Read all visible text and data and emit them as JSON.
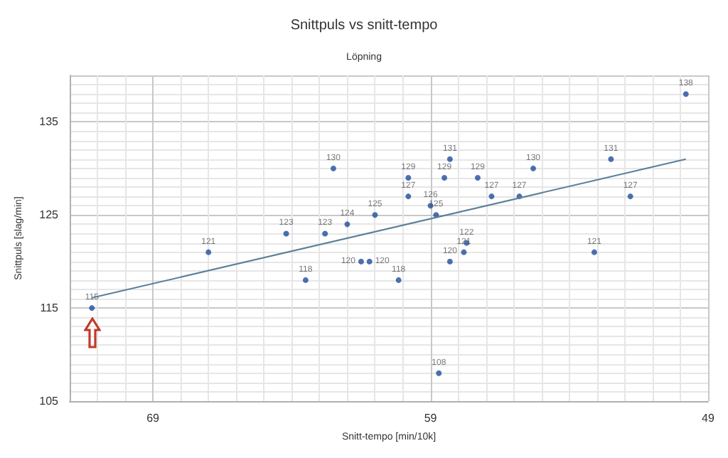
{
  "chart_data": {
    "type": "scatter",
    "title": "Snittpuls vs snitt-tempo",
    "subtitle": "Löpning",
    "xlabel": "Snitt-tempo [min/10k]",
    "ylabel": "Snittpuls [slag/min]",
    "xlim": [
      72,
      49
    ],
    "xticks": [
      69,
      59,
      49
    ],
    "ylim": [
      105,
      140
    ],
    "yticks": [
      105,
      115,
      125,
      135
    ],
    "grid": true,
    "marker": "circle",
    "series": [
      {
        "color": "#1f4e9c",
        "value_labels": [
          "115",
          "121",
          "123",
          "118",
          "123",
          "130",
          "124",
          "120",
          "120",
          "125",
          "118",
          "129",
          "127",
          "126",
          "125",
          "108",
          "129",
          "131",
          "120",
          "121",
          "122",
          "129",
          "127",
          "127",
          "130",
          "121",
          "131",
          "127",
          "138"
        ],
        "x": [
          71.2,
          67.0,
          64.2,
          63.5,
          62.8,
          62.5,
          62.0,
          61.5,
          61.2,
          61.0,
          60.15,
          59.8,
          59.8,
          59.0,
          58.8,
          58.7,
          58.5,
          58.3,
          58.3,
          57.8,
          57.7,
          57.3,
          56.8,
          55.8,
          55.3,
          53.1,
          52.5,
          51.8,
          49.8
        ],
        "values": [
          115,
          121,
          123,
          118,
          123,
          130,
          124,
          120,
          120,
          125,
          118,
          129,
          127,
          126,
          125,
          108,
          129,
          131,
          120,
          121,
          122,
          129,
          127,
          127,
          130,
          121,
          131,
          127,
          138
        ]
      },
      {
        "type": "line",
        "color": "#5a7f9a",
        "marker": "none",
        "x": [
          71.2,
          49.8
        ],
        "values": [
          116.1,
          131.0
        ]
      }
    ]
  }
}
